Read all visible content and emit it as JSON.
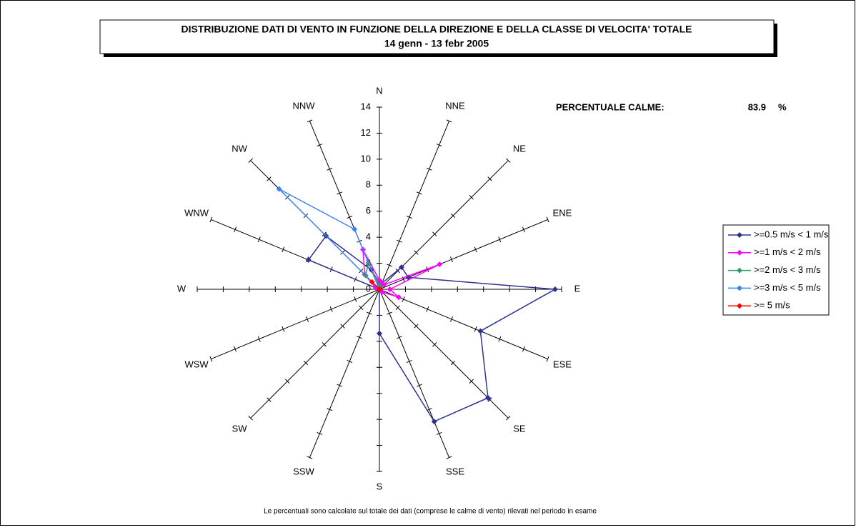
{
  "chart_data": {
    "type": "radar",
    "title": "DISTRIBUZIONE DATI DI VENTO IN FUNZIONE DELLA DIREZIONE E DELLA CLASSE DI VELOCITA' TOTALE",
    "subtitle": "14 genn - 13 febr 2005",
    "categories": [
      "N",
      "NNE",
      "NE",
      "ENE",
      "E",
      "ESE",
      "SE",
      "SSE",
      "S",
      "SSW",
      "SW",
      "WSW",
      "W",
      "WNW",
      "NW",
      "NNW"
    ],
    "rlim": [
      0,
      14
    ],
    "rticks": [
      0,
      2,
      4,
      6,
      8,
      10,
      12,
      14
    ],
    "series": [
      {
        "name": ">=0.5 m/s < 1 m/s",
        "color": "#2e3192",
        "values": [
          0.5,
          0.5,
          2.4,
          2.4,
          13.5,
          8.4,
          11.8,
          11,
          3.4,
          0,
          0,
          0,
          0,
          5.9,
          5.8,
          1.6
        ]
      },
      {
        "name": ">=1 m/s < 2 m/s",
        "color": "#ff00ff",
        "values": [
          0.7,
          0.5,
          0.5,
          5.0,
          0.8,
          1.6,
          0.3,
          0,
          0,
          0,
          0,
          0,
          0,
          0.3,
          1.6,
          3.3
        ]
      },
      {
        "name": ">=2 m/s < 3 m/s",
        "color": "#339966",
        "values": [
          0.3,
          0,
          0,
          0,
          0,
          0,
          0,
          0,
          0,
          0,
          0,
          0,
          0,
          0,
          1.5,
          2.2
        ]
      },
      {
        "name": ">=3 m/s < 5 m/s",
        "color": "#3c82f0",
        "values": [
          0,
          0,
          0,
          0,
          0,
          0,
          0,
          0,
          0,
          0,
          0,
          0,
          0,
          0,
          10.9,
          5.0
        ]
      },
      {
        "name": ">= 5 m/s",
        "color": "#ff0000",
        "values": [
          0,
          0,
          0,
          0,
          0,
          0,
          0,
          0,
          0,
          0,
          0,
          0,
          0,
          0,
          0.8,
          0
        ]
      }
    ],
    "calm": {
      "label": "PERCENTUALE CALME:",
      "value": 83.9,
      "unit": "%"
    },
    "note": "Le percentuali sono calcolate sul totale dei dati (comprese le calme di vento) rilevati nel periodo in esame"
  }
}
